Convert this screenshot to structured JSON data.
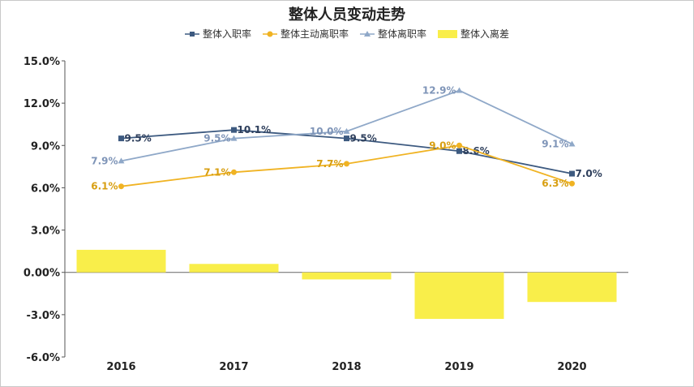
{
  "chart_data": {
    "type": "line",
    "title": "整体人员变动走势",
    "categories": [
      "2016",
      "2017",
      "2018",
      "2019",
      "2020"
    ],
    "y_ticks": [
      "15.0%",
      "12.0%",
      "9.0%",
      "6.0%",
      "3.0%",
      "0.00%",
      "-3.0%",
      "-6.0%"
    ],
    "ylim": [
      -6,
      15
    ],
    "legend_position": "top-center",
    "series": [
      {
        "name": "整体入职率",
        "type": "line",
        "color": "#3d5a80",
        "marker": "square",
        "values": [
          9.5,
          10.1,
          9.5,
          8.6,
          7.0
        ],
        "labels": [
          "9.5%",
          "10.1%",
          "9.5%",
          "8.6%",
          "7.0%"
        ]
      },
      {
        "name": "整体主动离职率",
        "type": "line",
        "color": "#f0b323",
        "marker": "circle",
        "values": [
          6.1,
          7.1,
          7.7,
          9.0,
          6.3
        ],
        "labels": [
          "6.1%",
          "7.1%",
          "7.7%",
          "9.0%",
          "6.3%"
        ]
      },
      {
        "name": "整体离职率",
        "type": "line",
        "color": "#8fa8c8",
        "marker": "triangle",
        "values": [
          7.9,
          9.5,
          10.0,
          12.9,
          9.1
        ],
        "labels": [
          "7.9%",
          "9.5%",
          "10.0%",
          "12.9%",
          "9.1%"
        ]
      },
      {
        "name": "整体入离差",
        "type": "bar",
        "color": "#f9ee4a",
        "marker": "rect",
        "values": [
          1.6,
          0.6,
          -0.5,
          -3.3,
          -2.1
        ],
        "labels": []
      }
    ]
  }
}
